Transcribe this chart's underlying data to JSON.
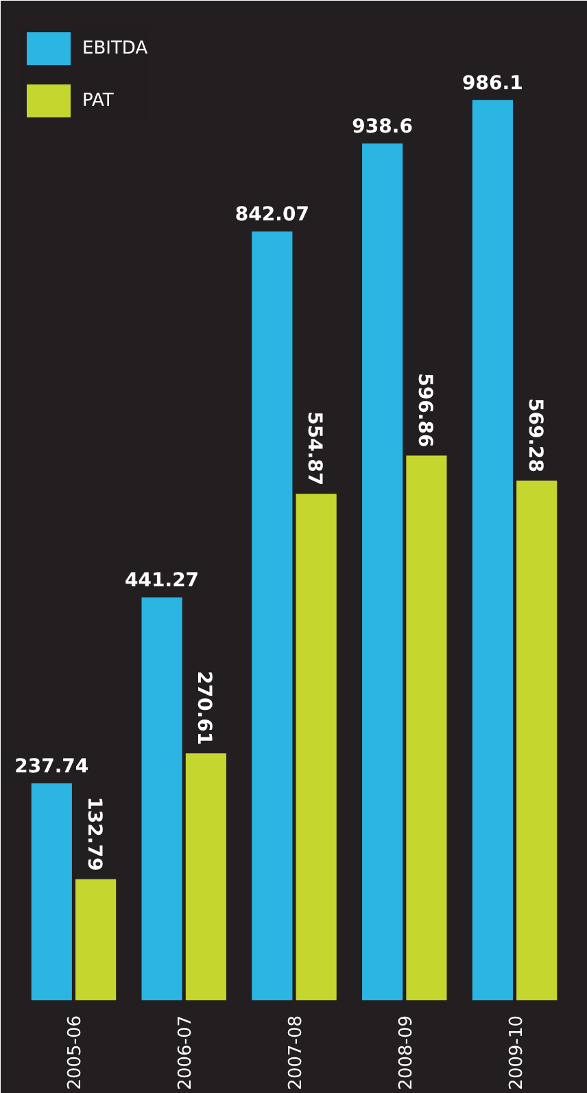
{
  "chart_data": {
    "type": "bar",
    "categories": [
      "2005-06",
      "2006-07",
      "2007-08",
      "2008-09",
      "2009-10"
    ],
    "series": [
      {
        "name": "EBITDA",
        "color": "#2bb5e3",
        "values": [
          237.74,
          441.27,
          842.07,
          938.6,
          986.1
        ]
      },
      {
        "name": "PAT",
        "color": "#c5d62f",
        "values": [
          132.79,
          270.61,
          554.87,
          596.86,
          569.28
        ]
      }
    ],
    "ylim": [
      0,
      1080
    ],
    "tick_labels": "x",
    "data_labels": true,
    "grid": false,
    "legend": "top left"
  }
}
